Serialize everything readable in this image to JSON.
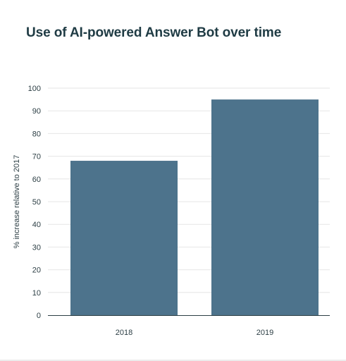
{
  "chart_data": {
    "type": "bar",
    "title": "Use of AI-powered Answer Bot over time",
    "xlabel": "",
    "ylabel": "% increase relative to 2017",
    "categories": [
      "2018",
      "2019"
    ],
    "values": [
      68,
      95
    ],
    "ylim": [
      0,
      100
    ],
    "yticks": [
      0,
      10,
      20,
      30,
      40,
      50,
      60,
      70,
      80,
      90,
      100
    ],
    "grid": true,
    "legend": "none",
    "colors": {
      "bar": "#4d738c",
      "grid": "#e6e6e6",
      "axis": "#2c3e44",
      "title": "#1f3b44"
    }
  }
}
